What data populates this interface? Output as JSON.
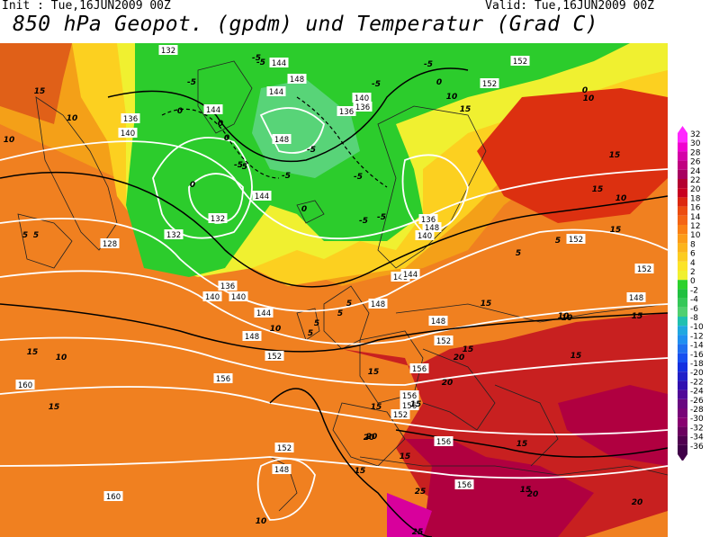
{
  "header": {
    "init": "Init : Tue,16JUN2009 00Z",
    "valid": "Valid: Tue,16JUN2009 00Z",
    "title": "850 hPa Geopot. (gpdm) und Temperatur (Grad C)"
  },
  "legend": {
    "values": [
      "32",
      "30",
      "28",
      "26",
      "24",
      "22",
      "20",
      "18",
      "16",
      "14",
      "12",
      "10",
      "8",
      "6",
      "4",
      "2",
      "0",
      "-2",
      "-4",
      "-6",
      "-8",
      "-10",
      "-12",
      "-14",
      "-16",
      "-18",
      "-20",
      "-22",
      "-24",
      "-26",
      "-28",
      "-30",
      "-32",
      "-34",
      "-36"
    ],
    "colors": [
      "#ff28ff",
      "#f000d0",
      "#d400a8",
      "#c00080",
      "#a80060",
      "#b40030",
      "#c80020",
      "#dc2810",
      "#ec4c10",
      "#f46414",
      "#fa8014",
      "#fc9c18",
      "#fcb41c",
      "#fccc20",
      "#fce428",
      "#f0f030",
      "#2cd22c",
      "#20c040",
      "#34c858",
      "#50d070",
      "#20c0b0",
      "#20a8e0",
      "#2090f0",
      "#2070f0",
      "#1850f0",
      "#1430e0",
      "#2020c8",
      "#3010b0",
      "#500898",
      "#680880",
      "#780478",
      "#880070",
      "#6c0060",
      "#500050",
      "#400048"
    ]
  },
  "geopotential_labels": [
    "132",
    "144",
    "144",
    "152",
    "148",
    "144",
    "136",
    "140",
    "140",
    "136",
    "148",
    "132",
    "144",
    "140",
    "132",
    "128",
    "136",
    "140",
    "144",
    "152",
    "148",
    "148",
    "152",
    "148",
    "160",
    "156",
    "156",
    "156",
    "156",
    "152",
    "156",
    "152",
    "148",
    "160",
    "156",
    "152",
    "148",
    "136",
    "152",
    "148",
    "136",
    "140",
    "144",
    "152",
    "148"
  ],
  "temperature_labels": [
    "-5",
    "-5",
    "-5",
    "0",
    "15",
    "10",
    "10",
    "-5",
    "-5",
    "0",
    "0",
    "-5",
    "0",
    "-5",
    "-5",
    "-5",
    "-5",
    "0",
    "-5",
    "5",
    "10",
    "15",
    "10",
    "15",
    "10",
    "5",
    "0",
    "5",
    "10",
    "15",
    "0",
    "-5",
    "5",
    "5",
    "15",
    "15",
    "15",
    "10",
    "15",
    "20",
    "20",
    "15",
    "15",
    "15",
    "20",
    "15",
    "10",
    "15",
    "20",
    "25",
    "20",
    "25",
    "15",
    "20",
    "15",
    "10",
    "5",
    "5",
    "5",
    "15",
    "15",
    "10",
    "15"
  ]
}
